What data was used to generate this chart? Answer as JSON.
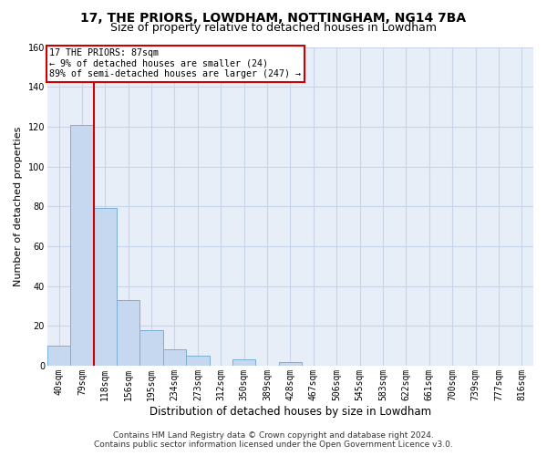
{
  "title": "17, THE PRIORS, LOWDHAM, NOTTINGHAM, NG14 7BA",
  "subtitle": "Size of property relative to detached houses in Lowdham",
  "xlabel": "Distribution of detached houses by size in Lowdham",
  "ylabel": "Number of detached properties",
  "footer_line1": "Contains HM Land Registry data © Crown copyright and database right 2024.",
  "footer_line2": "Contains public sector information licensed under the Open Government Licence v3.0.",
  "bar_labels": [
    "40sqm",
    "79sqm",
    "118sqm",
    "156sqm",
    "195sqm",
    "234sqm",
    "273sqm",
    "312sqm",
    "350sqm",
    "389sqm",
    "428sqm",
    "467sqm",
    "506sqm",
    "545sqm",
    "583sqm",
    "622sqm",
    "661sqm",
    "700sqm",
    "739sqm",
    "777sqm",
    "816sqm"
  ],
  "bar_values": [
    10,
    121,
    79,
    33,
    18,
    8,
    5,
    0,
    3,
    0,
    2,
    0,
    0,
    0,
    0,
    0,
    0,
    0,
    0,
    0,
    0
  ],
  "bar_color": "#c5d8f0",
  "bar_edge_color": "#7aafd4",
  "grid_color": "#c8d4e8",
  "background_color": "#e8eef8",
  "annotation_line1": "17 THE PRIORS: 87sqm",
  "annotation_line2": "← 9% of detached houses are smaller (24)",
  "annotation_line3": "89% of semi-detached houses are larger (247) →",
  "annotation_box_color": "#ffffff",
  "annotation_box_edge": "#cc0000",
  "vline_color": "#cc0000",
  "vline_xindex": 1.5,
  "ylim": [
    0,
    160
  ],
  "yticks": [
    0,
    20,
    40,
    60,
    80,
    100,
    120,
    140,
    160
  ],
  "title_fontsize": 10,
  "subtitle_fontsize": 9,
  "ylabel_fontsize": 8,
  "xlabel_fontsize": 8.5,
  "tick_fontsize": 7,
  "footer_fontsize": 6.5
}
